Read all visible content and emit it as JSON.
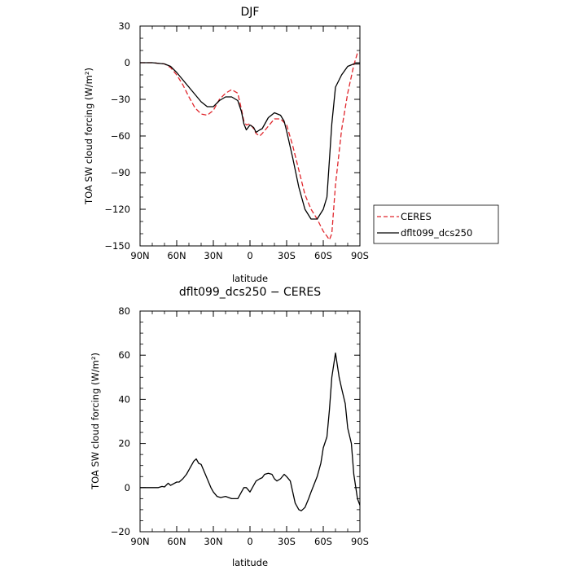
{
  "chart_data": [
    {
      "type": "line",
      "title": "DJF",
      "xlabel": "latitude",
      "ylabel": "TOA SW cloud forcing (W/m²)",
      "xlim": [
        -90,
        90
      ],
      "ylim": [
        -150,
        30
      ],
      "x_ticks": [
        -90,
        -60,
        -30,
        0,
        30,
        60,
        90
      ],
      "x_tick_labels": [
        "90N",
        "60N",
        "30N",
        "0",
        "30S",
        "60S",
        "90S"
      ],
      "y_ticks": [
        -150,
        -120,
        -90,
        -60,
        -30,
        0,
        30
      ],
      "y_tick_labels": [
        "−150",
        "−120",
        "−90",
        "−60",
        "−30",
        "0",
        "30"
      ],
      "legend": "outside-right",
      "series": [
        {
          "name": "CERES",
          "color": "#e0262c",
          "dash": "dashed",
          "x": [
            -90,
            -80,
            -70,
            -65,
            -60,
            -55,
            -50,
            -45,
            -40,
            -35,
            -30,
            -25,
            -20,
            -15,
            -10,
            -7,
            -5,
            -3,
            0,
            3,
            5,
            8,
            10,
            15,
            20,
            25,
            30,
            35,
            40,
            45,
            50,
            55,
            60,
            63,
            65,
            67,
            70,
            75,
            80,
            85,
            88,
            90
          ],
          "y": [
            0,
            0,
            -1,
            -4,
            -10,
            -18,
            -28,
            -37,
            -42,
            -43,
            -39,
            -30,
            -25,
            -22,
            -25,
            -38,
            -48,
            -51,
            -50,
            -54,
            -58,
            -60,
            -58,
            -52,
            -46,
            -46,
            -51,
            -68,
            -88,
            -108,
            -120,
            -128,
            -138,
            -142,
            -145,
            -140,
            -100,
            -55,
            -25,
            -2,
            8,
            8
          ]
        },
        {
          "name": "dflt099_dcs250",
          "color": "#000000",
          "dash": "solid",
          "x": [
            -90,
            -80,
            -70,
            -65,
            -60,
            -55,
            -50,
            -45,
            -40,
            -35,
            -30,
            -25,
            -20,
            -15,
            -10,
            -7,
            -5,
            -3,
            0,
            3,
            5,
            8,
            10,
            15,
            20,
            25,
            28,
            30,
            35,
            40,
            45,
            50,
            55,
            60,
            63,
            65,
            67,
            70,
            75,
            80,
            85,
            90
          ],
          "y": [
            0,
            0,
            -1,
            -3,
            -8,
            -14,
            -20,
            -26,
            -32,
            -36,
            -36,
            -31,
            -28,
            -28,
            -31,
            -40,
            -50,
            -55,
            -51,
            -53,
            -57,
            -55,
            -54,
            -45,
            -41,
            -43,
            -48,
            -56,
            -78,
            -102,
            -120,
            -128,
            -128,
            -120,
            -110,
            -80,
            -50,
            -20,
            -10,
            -3,
            -1,
            -1
          ]
        }
      ]
    },
    {
      "type": "line",
      "title": "dflt099_dcs250 − CERES",
      "xlabel": "latitude",
      "ylabel": "TOA SW cloud forcing (W/m²)",
      "xlim": [
        -90,
        90
      ],
      "ylim": [
        -20,
        80
      ],
      "x_ticks": [
        -90,
        -60,
        -30,
        0,
        30,
        60,
        90
      ],
      "x_tick_labels": [
        "90N",
        "60N",
        "30N",
        "0",
        "30S",
        "60S",
        "90S"
      ],
      "y_ticks": [
        -20,
        0,
        20,
        40,
        60,
        80
      ],
      "y_tick_labels": [
        "−20",
        "0",
        "20",
        "40",
        "60",
        "80"
      ],
      "series": [
        {
          "color": "#000000",
          "dash": "solid",
          "x": [
            -90,
            -75,
            -72,
            -70,
            -67,
            -65,
            -60,
            -58,
            -55,
            -52,
            -50,
            -48,
            -46,
            -44,
            -42,
            -40,
            -35,
            -32,
            -30,
            -27,
            -24,
            -20,
            -15,
            -10,
            -5,
            -3,
            0,
            3,
            5,
            8,
            10,
            12,
            15,
            18,
            20,
            22,
            25,
            28,
            30,
            33,
            35,
            37,
            40,
            42,
            45,
            48,
            50,
            55,
            58,
            60,
            63,
            65,
            67,
            70,
            73,
            75,
            78,
            80,
            83,
            85,
            88,
            90
          ],
          "y": [
            0,
            0,
            0.5,
            0.3,
            2,
            1,
            2.5,
            2.5,
            4,
            6,
            8,
            10,
            12,
            13,
            11,
            10.5,
            4,
            0,
            -2,
            -4,
            -4.5,
            -4,
            -5,
            -5,
            0,
            0,
            -2,
            1,
            3,
            4,
            4.5,
            6,
            6.5,
            6,
            4,
            3,
            4,
            6,
            5,
            3,
            -2,
            -7,
            -10,
            -10.5,
            -9,
            -5,
            -2,
            5,
            11,
            18,
            23,
            35,
            50,
            61,
            50,
            45,
            38,
            27,
            20,
            6,
            -5,
            -8
          ]
        }
      ]
    }
  ]
}
